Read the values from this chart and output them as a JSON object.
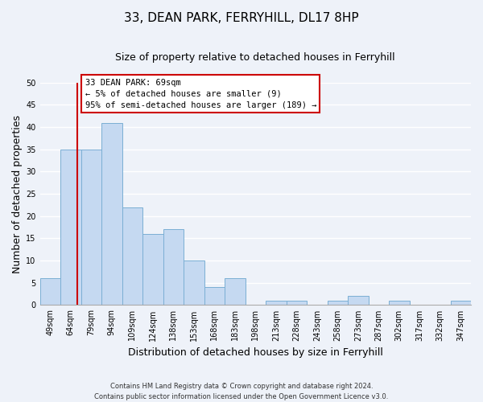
{
  "title": "33, DEAN PARK, FERRYHILL, DL17 8HP",
  "subtitle": "Size of property relative to detached houses in Ferryhill",
  "xlabel": "Distribution of detached houses by size in Ferryhill",
  "ylabel": "Number of detached properties",
  "bin_labels": [
    "49sqm",
    "64sqm",
    "79sqm",
    "94sqm",
    "109sqm",
    "124sqm",
    "138sqm",
    "153sqm",
    "168sqm",
    "183sqm",
    "198sqm",
    "213sqm",
    "228sqm",
    "243sqm",
    "258sqm",
    "273sqm",
    "287sqm",
    "302sqm",
    "317sqm",
    "332sqm",
    "347sqm"
  ],
  "bar_heights": [
    6,
    35,
    35,
    41,
    22,
    16,
    17,
    10,
    4,
    6,
    0,
    1,
    1,
    0,
    1,
    2,
    0,
    1,
    0,
    0,
    1
  ],
  "bar_color": "#c5d9f1",
  "bar_edge_color": "#7bafd4",
  "ylim": [
    0,
    50
  ],
  "yticks": [
    0,
    5,
    10,
    15,
    20,
    25,
    30,
    35,
    40,
    45,
    50
  ],
  "subject_line_bin_index": 1.33,
  "annotation_title": "33 DEAN PARK: 69sqm",
  "annotation_line1": "← 5% of detached houses are smaller (9)",
  "annotation_line2": "95% of semi-detached houses are larger (189) →",
  "annotation_box_color": "#ffffff",
  "annotation_box_edge_color": "#cc0000",
  "subject_line_color": "#cc0000",
  "footer_line1": "Contains HM Land Registry data © Crown copyright and database right 2024.",
  "footer_line2": "Contains public sector information licensed under the Open Government Licence v3.0.",
  "background_color": "#eef2f9",
  "grid_color": "#ffffff",
  "title_fontsize": 11,
  "subtitle_fontsize": 9,
  "axis_label_fontsize": 9,
  "tick_fontsize": 7,
  "footer_fontsize": 6,
  "annotation_fontsize": 7.5
}
